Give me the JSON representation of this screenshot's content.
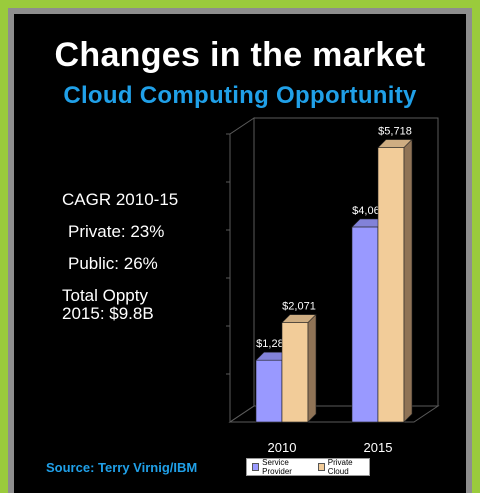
{
  "slide": {
    "title": "Changes in the market",
    "subtitle": "Cloud Computing Opportunity",
    "stats": {
      "cagr_label": "CAGR 2010-15",
      "private": "Private: 23%",
      "public": "Public: 26%",
      "total_line1": "Total Oppty",
      "total_line2": "2015: $9.8B"
    },
    "source": "Source: Terry Virnig/IBM"
  },
  "colors": {
    "frame_outer": "#9acb3c",
    "frame_inner": "#8e8e8e",
    "background": "#000000",
    "subtitle": "#20a0e8",
    "service_provider": "#9999ff",
    "private_cloud": "#f2cc99"
  },
  "chart_data": {
    "type": "bar",
    "categories": [
      "2010",
      "2015"
    ],
    "series": [
      {
        "name": "Service Provider",
        "values": [
          1287,
          4063
        ],
        "labels": [
          "$1,287",
          "$4,063"
        ]
      },
      {
        "name": "Private Cloud",
        "values": [
          2071,
          5718
        ],
        "labels": [
          "$2,071",
          "$5,718"
        ]
      }
    ],
    "ylim": [
      0,
      6000
    ],
    "grid": false,
    "legend": "bottom"
  }
}
